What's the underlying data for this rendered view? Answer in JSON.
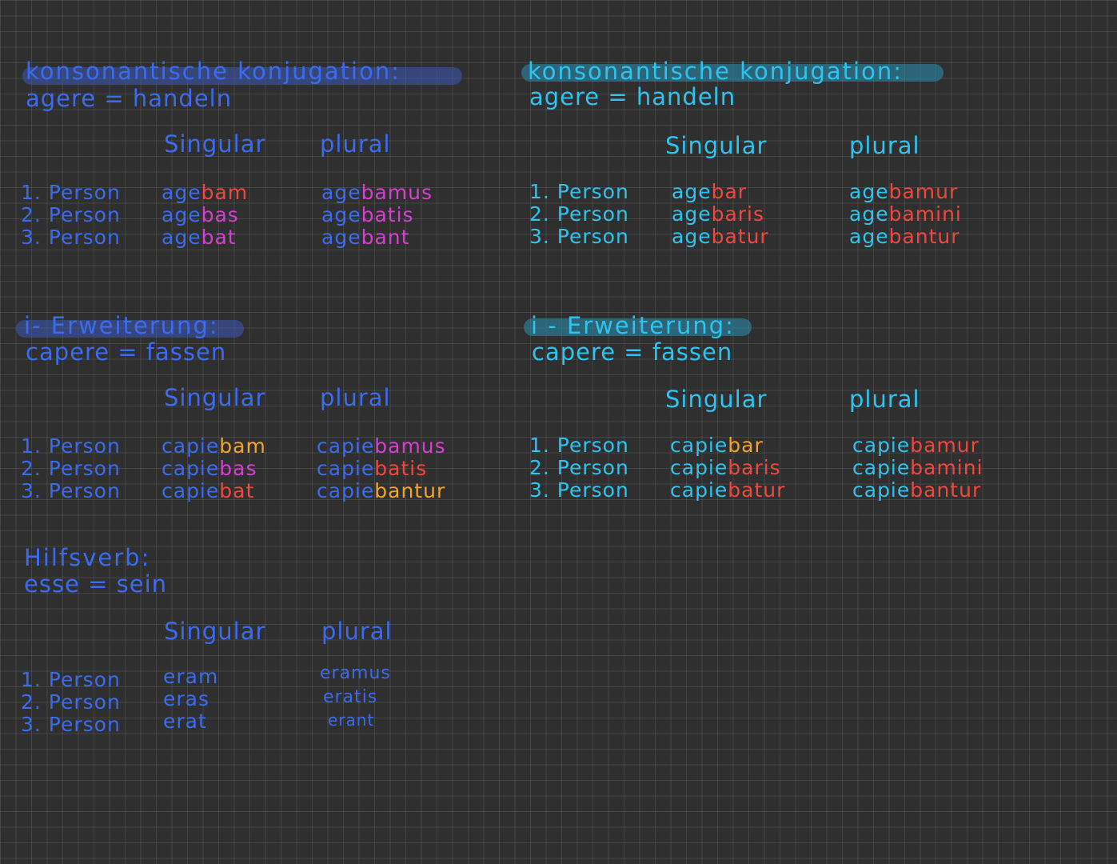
{
  "colors": {
    "left_text": "#3b6cf0",
    "left_highlight": "#3e5ab8",
    "right_text": "#2ec4f0",
    "right_highlight": "#2a8fb5",
    "ending_red": "#f0473e",
    "ending_pink": "#d63fd0",
    "ending_orange": "#f2a52a"
  },
  "left": {
    "konsonantische": {
      "title": "konsonantische konjugation:",
      "verb": "agere = handeln",
      "singular_label": "Singular",
      "plural_label": "plural",
      "rows": [
        {
          "person": "1. Person",
          "sg_stem": "age",
          "sg_end": "bam",
          "pl_stem": "age",
          "pl_end": "bamus"
        },
        {
          "person": "2. Person",
          "sg_stem": "age",
          "sg_end": "bas",
          "pl_stem": "age",
          "pl_end": "batis"
        },
        {
          "person": "3. Person",
          "sg_stem": "age",
          "sg_end": "bat",
          "pl_stem": "age",
          "pl_end": "bant"
        }
      ]
    },
    "i_erweiterung": {
      "title": "i- Erweiterung:",
      "verb": "capere = fassen",
      "singular_label": "Singular",
      "plural_label": "plural",
      "rows": [
        {
          "person": "1. Person",
          "sg_stem": "capie",
          "sg_end": "bam",
          "pl_stem": "capie",
          "pl_end": "bamus"
        },
        {
          "person": "2. Person",
          "sg_stem": "capie",
          "sg_end": "bas",
          "pl_stem": "capie",
          "pl_end": "batis"
        },
        {
          "person": "3. Person",
          "sg_stem": "capie",
          "sg_end": "bat",
          "pl_stem": "capie",
          "pl_end": "bantur"
        }
      ]
    },
    "hilfsverb": {
      "title": "Hilfsverb:",
      "verb": "esse = sein",
      "singular_label": "Singular",
      "plural_label": "plural",
      "rows": [
        {
          "person": "1. Person",
          "sg": "eram",
          "pl": "eramus"
        },
        {
          "person": "2. Person",
          "sg": "eras",
          "pl": "eratis"
        },
        {
          "person": "3. Person",
          "sg": "erat",
          "pl": "erant"
        }
      ]
    }
  },
  "right": {
    "konsonantische": {
      "title": "konsonantische konjugation:",
      "verb": "agere = handeln",
      "singular_label": "Singular",
      "plural_label": "plural",
      "rows": [
        {
          "person": "1. Person",
          "sg_stem": "age",
          "sg_end": "bar",
          "pl_stem": "age",
          "pl_end": "bamur"
        },
        {
          "person": "2. Person",
          "sg_stem": "age",
          "sg_end": "baris",
          "pl_stem": "age",
          "pl_end": "bamini"
        },
        {
          "person": "3. Person",
          "sg_stem": "age",
          "sg_end": "batur",
          "pl_stem": "age",
          "pl_end": "bantur"
        }
      ]
    },
    "i_erweiterung": {
      "title": "i - Erweiterung:",
      "verb": "capere = fassen",
      "singular_label": "Singular",
      "plural_label": "plural",
      "rows": [
        {
          "person": "1. Person",
          "sg_stem": "capie",
          "sg_end": "bar",
          "pl_stem": "capie",
          "pl_end": "bamur"
        },
        {
          "person": "2. Person",
          "sg_stem": "capie",
          "sg_end": "baris",
          "pl_stem": "capie",
          "pl_end": "bamini"
        },
        {
          "person": "3. Person",
          "sg_stem": "capie",
          "sg_end": "batur",
          "pl_stem": "capie",
          "pl_end": "bantur"
        }
      ]
    }
  }
}
